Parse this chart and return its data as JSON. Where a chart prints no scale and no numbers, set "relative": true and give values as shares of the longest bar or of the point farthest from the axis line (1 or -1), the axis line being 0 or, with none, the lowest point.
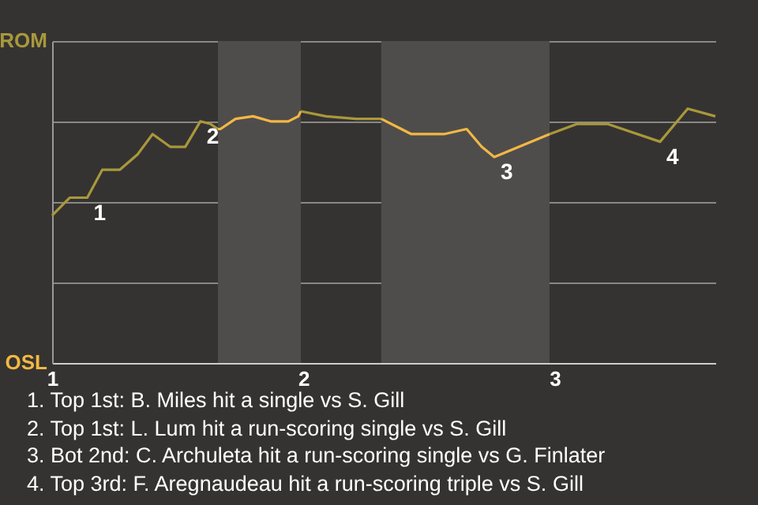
{
  "chart_data": {
    "type": "line",
    "relative": true,
    "series": [
      {
        "color": "#a8983c",
        "x": [
          1,
          1.07,
          1.14,
          1.2,
          1.27,
          1.34,
          1.4,
          1.47,
          1.53,
          1.59,
          1.63,
          1.66
        ],
        "values": [
          0.58,
          0.65,
          0.65,
          0.76,
          0.76,
          0.82,
          0.9,
          0.85,
          0.85,
          0.95,
          0.94,
          0.92
        ]
      },
      {
        "color": "#f2b844",
        "x": [
          1.66,
          1.67,
          1.73,
          1.8,
          1.87,
          1.94,
          1.98,
          1.99
        ],
        "values": [
          0.92,
          0.92,
          0.96,
          0.97,
          0.95,
          0.95,
          0.97,
          0.99
        ]
      },
      {
        "color": "#a8983c",
        "x": [
          1.99,
          2.09,
          2.21,
          2.31
        ],
        "values": [
          0.99,
          0.97,
          0.96,
          0.96
        ]
      },
      {
        "color": "#f2b844",
        "x": [
          2.31,
          2.43,
          2.56,
          2.65,
          2.71,
          2.76,
          2.98
        ],
        "values": [
          0.96,
          0.9,
          0.9,
          0.92,
          0.85,
          0.81,
          0.9
        ]
      },
      {
        "color": "#a8983c",
        "x": [
          2.98,
          3.09,
          3.21,
          3.42,
          3.53,
          3.64
        ],
        "values": [
          0.9,
          0.94,
          0.94,
          0.87,
          1,
          0.97
        ]
      }
    ],
    "xlim": [
      1,
      3.64
    ],
    "xticks": [
      1,
      2,
      3
    ],
    "grid": "y",
    "bands": [
      {
        "axis": "x",
        "from": 1.66,
        "to": 1.99,
        "color": "#4f4d4b"
      },
      {
        "axis": "x",
        "from": 2.31,
        "to": 2.98,
        "color": "#4f4d4b"
      }
    ],
    "annotations": [
      "ROM",
      "OSL",
      {
        "text": "1",
        "x": 1.14,
        "y": 0.65
      },
      {
        "text": "2",
        "x": 1.59,
        "y": 0.95
      },
      {
        "text": "3",
        "x": 2.76,
        "y": 0.81
      },
      {
        "text": "4",
        "x": 3.42,
        "y": 0.87
      },
      "1. Top 1st: B. Miles hit a single vs S. Gill",
      "2. Top 1st: L. Lum hit a run-scoring single vs S. Gill",
      "3. Bot 2nd: C. Archuleta hit a run-scoring single vs G. Finlater",
      "4. Top 3rd: F. Aregnaudeau hit a run-scoring triple vs S. Gill"
    ]
  }
}
